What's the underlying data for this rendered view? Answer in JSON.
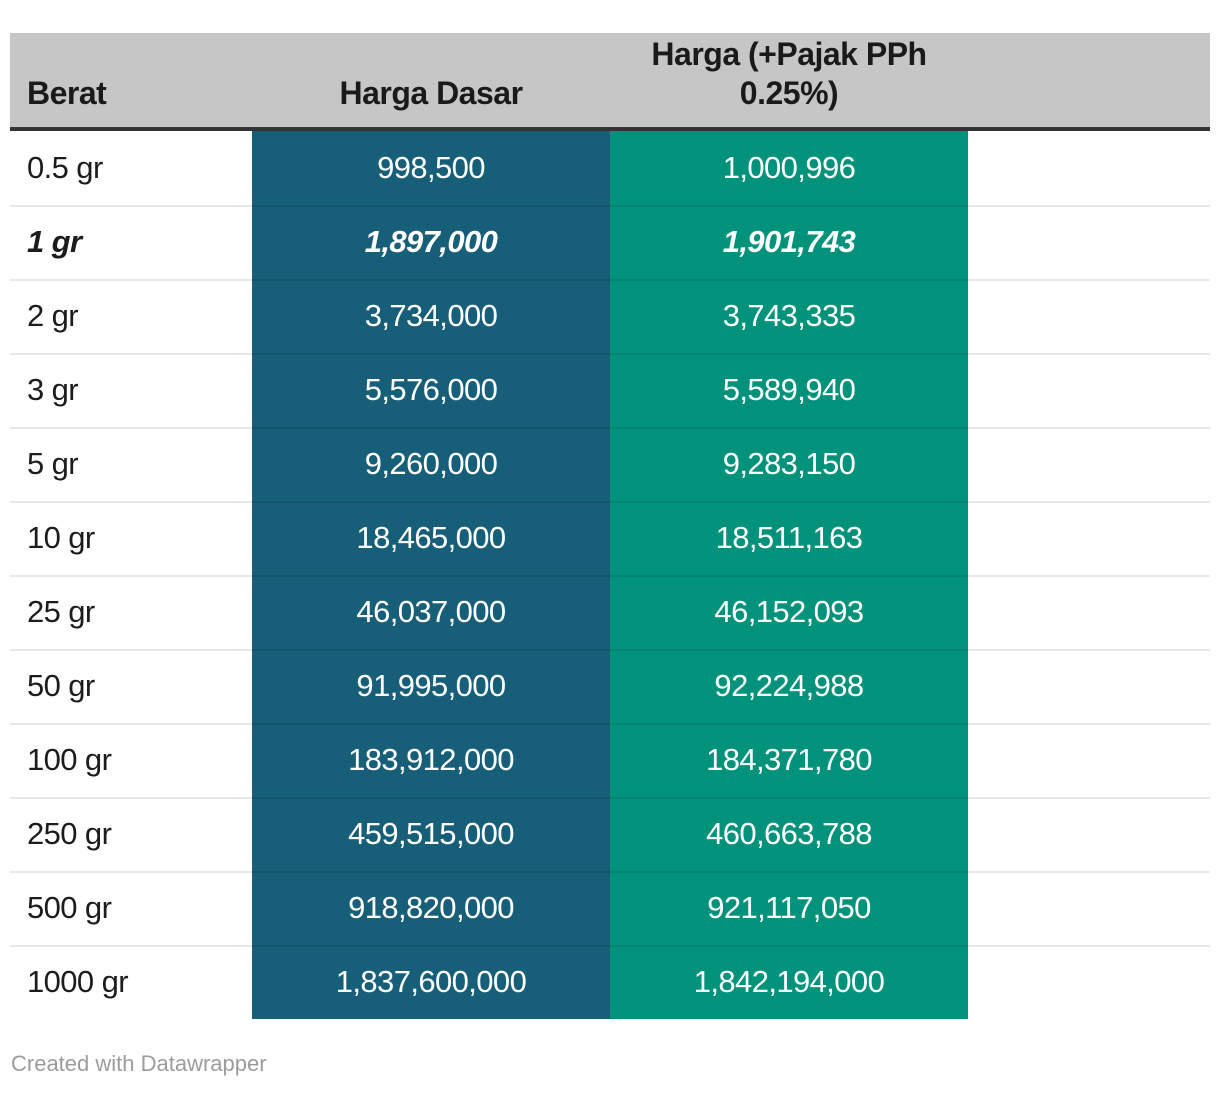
{
  "table": {
    "columns": [
      {
        "label": "Berat"
      },
      {
        "label": "Harga (+Pajak PPh 0.25%)"
      }
    ],
    "harga_dasar_label": "Harga Dasar",
    "rows": [
      {
        "berat": "0.5 gr",
        "harga_dasar": "998,500",
        "harga_pajak": "1,000,996",
        "highlight": false
      },
      {
        "berat": "1 gr",
        "harga_dasar": "1,897,000",
        "harga_pajak": "1,901,743",
        "highlight": true
      },
      {
        "berat": "2 gr",
        "harga_dasar": "3,734,000",
        "harga_pajak": "3,743,335",
        "highlight": false
      },
      {
        "berat": "3 gr",
        "harga_dasar": "5,576,000",
        "harga_pajak": "5,589,940",
        "highlight": false
      },
      {
        "berat": "5 gr",
        "harga_dasar": "9,260,000",
        "harga_pajak": "9,283,150",
        "highlight": false
      },
      {
        "berat": "10 gr",
        "harga_dasar": "18,465,000",
        "harga_pajak": "18,511,163",
        "highlight": false
      },
      {
        "berat": "25 gr",
        "harga_dasar": "46,037,000",
        "harga_pajak": "46,152,093",
        "highlight": false
      },
      {
        "berat": "50 gr",
        "harga_dasar": "91,995,000",
        "harga_pajak": "92,224,988",
        "highlight": false
      },
      {
        "berat": "100 gr",
        "harga_dasar": "183,912,000",
        "harga_pajak": "184,371,780",
        "highlight": false
      },
      {
        "berat": "250 gr",
        "harga_dasar": "459,515,000",
        "harga_pajak": "460,663,788",
        "highlight": false
      },
      {
        "berat": "500 gr",
        "harga_dasar": "918,820,000",
        "harga_pajak": "921,117,050",
        "highlight": false
      },
      {
        "berat": "1000 gr",
        "harga_dasar": "1,837,600,000",
        "harga_pajak": "1,842,194,000",
        "highlight": false
      }
    ]
  },
  "footer": {
    "credit": "Created with Datawrapper"
  },
  "colors": {
    "harga_dasar_column": "#175e78",
    "harga_pajak_column": "#00927a",
    "header_background": "#c6c6c6",
    "header_rule": "#333333"
  }
}
